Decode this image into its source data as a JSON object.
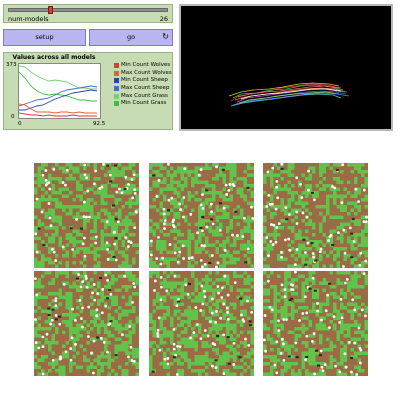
{
  "slider": {
    "label": "num-models",
    "value": "26",
    "fraction": 0.26
  },
  "buttons": {
    "setup_label": "setup",
    "go_label": "go",
    "go_icon": "forever-icon"
  },
  "plot": {
    "title": "Values across all models",
    "ymax_label": "373",
    "ymin_label": "0",
    "xmin_label": "0",
    "xmax_label": "92.5",
    "legend": [
      {
        "label": "Min Count Wolves",
        "color": "#e03a2f"
      },
      {
        "label": "Max Count Wolves",
        "color": "#e4603a"
      },
      {
        "label": "Min Count Sheep",
        "color": "#2f3fb0"
      },
      {
        "label": "Max Count Sheep",
        "color": "#3d6fd0"
      },
      {
        "label": "Max Count Grass",
        "color": "#6fd36f"
      },
      {
        "label": "Min Count Grass",
        "color": "#3fbf3f"
      }
    ]
  },
  "colors": {
    "grass": "#62c24a",
    "dirt": "#9a6b45",
    "sheep": "#ffffff",
    "wolf": "#1f2a1a"
  }
}
